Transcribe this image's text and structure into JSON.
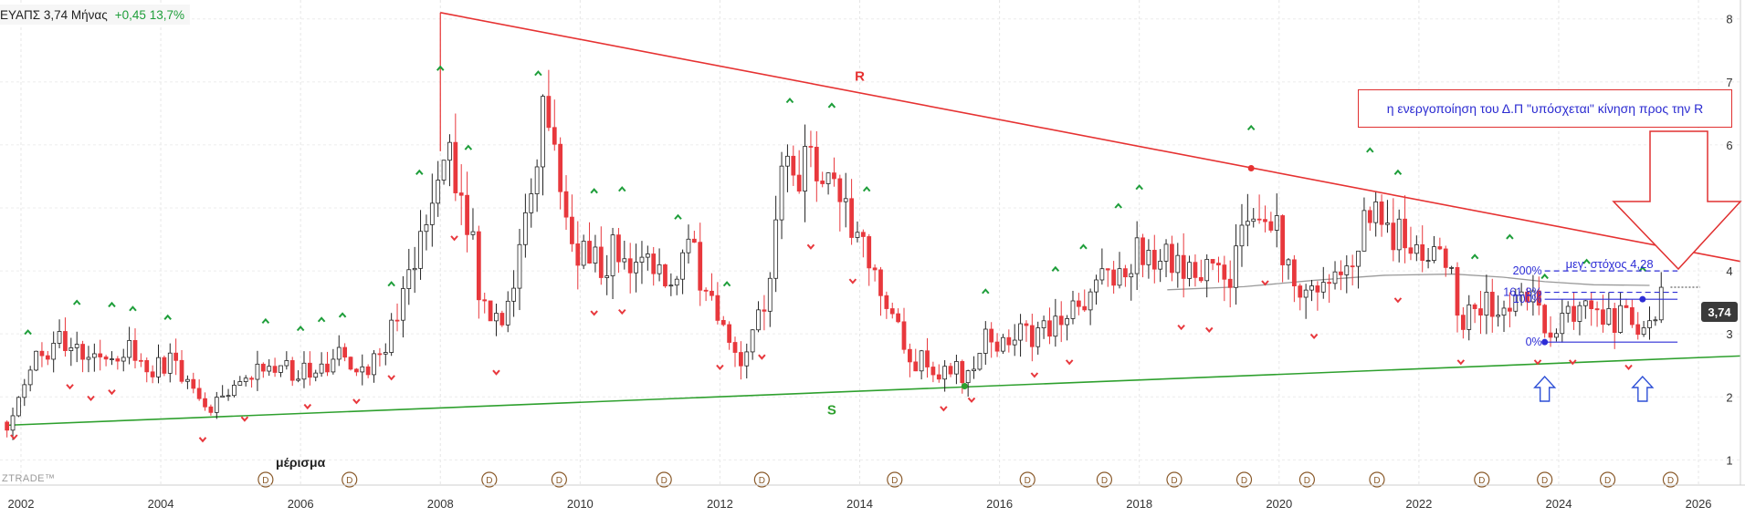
{
  "header": {
    "symbol": "ΕΥΑΠΣ",
    "price": "3,74",
    "timeframe": "Μήνας",
    "change": "+0,45",
    "change_pct": "13,7%"
  },
  "watermark": "ZTRADE™",
  "price_label": "3,74",
  "dividend_label": "μέρισμα",
  "annotation_text": "η ενεργοποίηση του Δ.Π \"υπόσχεται\" κίνηση προς την R",
  "colors": {
    "up": "#ffffff",
    "down": "#e8383d",
    "resistance": "#e63232",
    "support": "#2ea02e",
    "fib": "#2d2dd6",
    "ma": "#9a9a9a"
  },
  "chart_data": {
    "type": "candlestick",
    "x_ticks": [
      "2002",
      "2004",
      "2006",
      "2008",
      "2010",
      "2012",
      "2014",
      "2016",
      "2018",
      "2020",
      "2022",
      "2024",
      "2026"
    ],
    "y_ticks": [
      "1",
      "2",
      "3",
      "4",
      "5",
      "6",
      "7",
      "8"
    ],
    "xlim": [
      2001.7,
      2026.6
    ],
    "ylim": [
      0.6,
      8.3
    ],
    "series": [
      {
        "role": "monthly_candles",
        "anchors": [
          [
            2001.8,
            1.6
          ],
          [
            2002.2,
            2.6
          ],
          [
            2002.6,
            2.9
          ],
          [
            2003.0,
            2.6
          ],
          [
            2003.5,
            2.8
          ],
          [
            2003.8,
            2.4
          ],
          [
            2004.2,
            2.6
          ],
          [
            2004.6,
            1.8
          ],
          [
            2005.0,
            2.0
          ],
          [
            2005.5,
            2.5
          ],
          [
            2006.0,
            2.4
          ],
          [
            2006.5,
            2.6
          ],
          [
            2007.0,
            2.5
          ],
          [
            2007.3,
            3.0
          ],
          [
            2007.7,
            4.5
          ],
          [
            2008.0,
            5.9
          ],
          [
            2008.3,
            5.6
          ],
          [
            2008.6,
            3.3
          ],
          [
            2008.9,
            3.0
          ],
          [
            2009.2,
            4.5
          ],
          [
            2009.5,
            6.5
          ],
          [
            2009.9,
            4.4
          ],
          [
            2010.3,
            4.2
          ],
          [
            2010.7,
            4.3
          ],
          [
            2011.0,
            4.4
          ],
          [
            2011.3,
            3.7
          ],
          [
            2011.6,
            4.3
          ],
          [
            2011.9,
            3.4
          ],
          [
            2012.3,
            2.6
          ],
          [
            2012.6,
            3.4
          ],
          [
            2012.9,
            5.4
          ],
          [
            2013.2,
            5.6
          ],
          [
            2013.5,
            5.4
          ],
          [
            2013.7,
            5.4
          ],
          [
            2014.0,
            4.6
          ],
          [
            2014.4,
            3.3
          ],
          [
            2014.8,
            2.6
          ],
          [
            2015.2,
            2.4
          ],
          [
            2015.5,
            2.4
          ],
          [
            2015.8,
            2.9
          ],
          [
            2016.2,
            2.9
          ],
          [
            2016.6,
            3.1
          ],
          [
            2017.0,
            3.3
          ],
          [
            2017.5,
            3.8
          ],
          [
            2017.9,
            4.3
          ],
          [
            2018.2,
            4.3
          ],
          [
            2018.5,
            4.0
          ],
          [
            2018.9,
            3.9
          ],
          [
            2019.3,
            4.0
          ],
          [
            2019.6,
            5.1
          ],
          [
            2019.9,
            4.7
          ],
          [
            2020.2,
            3.9
          ],
          [
            2020.5,
            3.8
          ],
          [
            2020.9,
            4.0
          ],
          [
            2021.3,
            4.8
          ],
          [
            2021.7,
            4.5
          ],
          [
            2022.1,
            4.2
          ],
          [
            2022.4,
            4.2
          ],
          [
            2022.6,
            3.3
          ],
          [
            2022.9,
            3.4
          ],
          [
            2023.2,
            3.6
          ],
          [
            2023.5,
            3.7
          ],
          [
            2023.8,
            3.1
          ],
          [
            2024.2,
            3.3
          ],
          [
            2024.6,
            3.3
          ],
          [
            2025.0,
            3.2
          ],
          [
            2025.3,
            3.2
          ],
          [
            2025.5,
            3.74
          ]
        ]
      },
      {
        "name": "R",
        "role": "resistance",
        "points": [
          [
            2008.0,
            8.1
          ],
          [
            2026.6,
            4.15
          ]
        ]
      },
      {
        "name": "S",
        "role": "support",
        "points": [
          [
            2001.8,
            1.55
          ],
          [
            2026.6,
            2.65
          ]
        ]
      },
      {
        "role": "moving_average",
        "points": [
          [
            2018.4,
            3.7
          ],
          [
            2019.5,
            3.75
          ],
          [
            2020.5,
            3.85
          ],
          [
            2021.5,
            3.93
          ],
          [
            2022.5,
            3.95
          ],
          [
            2023.2,
            3.9
          ],
          [
            2023.8,
            3.83
          ],
          [
            2024.5,
            3.78
          ],
          [
            2025.3,
            3.77
          ]
        ]
      }
    ],
    "fibonacci": {
      "levels": [
        {
          "label": "200%",
          "price": 4.0
        },
        {
          "label": "161,8%",
          "price": 3.66
        },
        {
          "label": "100%",
          "price": 3.55
        },
        {
          "label": "0%",
          "price": 2.87
        }
      ],
      "x_range": [
        2023.8,
        2025.7
      ],
      "target_label": "μεγ. στόχος 4,28"
    },
    "touch_points": [
      [
        2015.5,
        2.17
      ],
      [
        2019.6,
        5.63
      ],
      [
        2023.8,
        2.87
      ],
      [
        2025.2,
        3.55
      ]
    ],
    "peak_markers_x": [
      2002.1,
      2002.8,
      2003.3,
      2003.6,
      2004.1,
      2005.5,
      2006.0,
      2006.3,
      2006.6,
      2007.3,
      2007.7,
      2008.0,
      2008.4,
      2009.4,
      2010.2,
      2010.6,
      2011.4,
      2012.1,
      2013.0,
      2013.6,
      2014.1,
      2015.8,
      2016.8,
      2017.2,
      2017.7,
      2018.0,
      2019.6,
      2021.3,
      2021.7,
      2022.8,
      2023.3,
      2023.8,
      2024.4,
      2025.2
    ],
    "trough_markers_x": [
      2001.9,
      2002.7,
      2003.0,
      2003.3,
      2004.6,
      2005.2,
      2006.1,
      2006.8,
      2007.3,
      2008.2,
      2008.8,
      2010.2,
      2010.6,
      2012.0,
      2012.6,
      2013.3,
      2013.9,
      2015.2,
      2015.6,
      2016.5,
      2017.0,
      2018.6,
      2019.0,
      2019.8,
      2020.5,
      2021.7,
      2022.6,
      2023.7,
      2024.2,
      2025.0
    ],
    "dividend_markers_x": [
      2005.5,
      2006.7,
      2008.7,
      2009.7,
      2011.2,
      2012.6,
      2014.5,
      2016.4,
      2017.5,
      2018.5,
      2019.5,
      2020.4,
      2021.4,
      2022.9,
      2023.8,
      2024.7,
      2025.6
    ],
    "dividend_marker_glyph": "D",
    "axis_labels": {
      "x": "",
      "y": ""
    }
  }
}
